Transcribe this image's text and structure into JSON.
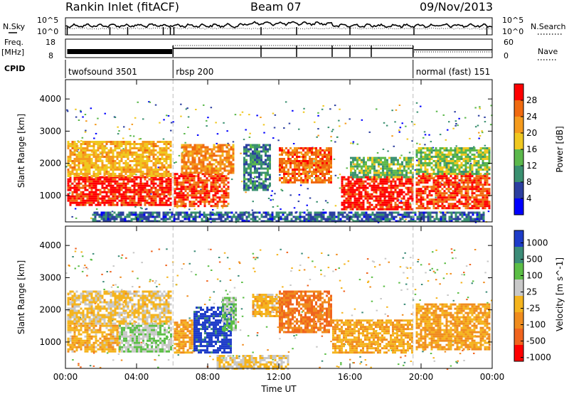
{
  "header": {
    "station": "Rankin Inlet (fitACF)",
    "beam": "Beam 07",
    "date": "09/Nov/2013"
  },
  "status_panel": {
    "nsky": {
      "label": "N.Sky",
      "ticks": [
        "10^5",
        "10^0"
      ]
    },
    "nsearch": {
      "label": "N.Search",
      "ticks": [
        "10^5",
        "10^0"
      ]
    },
    "freq": {
      "label_1": "Freq.",
      "label_2": "[MHz]",
      "ticks": [
        "18",
        "8"
      ]
    },
    "nave": {
      "label": "Nave",
      "ticks": [
        "60",
        "0"
      ]
    },
    "cpid": {
      "label": "CPID",
      "segments": [
        {
          "name": "twofsound 3501",
          "start_h": 0,
          "end_h": 6.05
        },
        {
          "name": "rbsp 200",
          "start_h": 6.05,
          "end_h": 19.55
        },
        {
          "name": "normal (fast) 151",
          "start_h": 19.55,
          "end_h": 24
        }
      ]
    }
  },
  "chart_data": [
    {
      "type": "heatmap",
      "title": "",
      "xlabel": "",
      "ylabel": "Slant Range [km]",
      "xlim": [
        0,
        24
      ],
      "ylim": [
        180,
        4600
      ],
      "yticks": [
        "1000",
        "2000",
        "3000",
        "4000"
      ],
      "colorbar": {
        "label": "Power [dB]",
        "ticks": [
          "4",
          "8",
          "12",
          "16",
          "20",
          "24",
          "28"
        ],
        "range": [
          0,
          30
        ],
        "colors": [
          "#0000ff",
          "#2c3fa0",
          "#3a9070",
          "#5cb84c",
          "#f0c820",
          "#f59b1e",
          "#f06a10",
          "#ff0000"
        ]
      },
      "regions": [
        {
          "t0": 0.1,
          "t1": 5.9,
          "r0": 700,
          "r1": 1600,
          "value": 28
        },
        {
          "t0": 0.1,
          "t1": 5.9,
          "r0": 1600,
          "r1": 2700,
          "value": 19
        },
        {
          "t0": 6.1,
          "t1": 9.2,
          "r0": 700,
          "r1": 1700,
          "value": 26
        },
        {
          "t0": 6.5,
          "t1": 9.5,
          "r0": 1700,
          "r1": 2600,
          "value": 22
        },
        {
          "t0": 10.0,
          "t1": 11.5,
          "r0": 1200,
          "r1": 2600,
          "value": 9
        },
        {
          "t0": 12.0,
          "t1": 15.0,
          "r0": 1400,
          "r1": 2500,
          "value": 24
        },
        {
          "t0": 15.5,
          "t1": 19.5,
          "r0": 600,
          "r1": 1600,
          "value": 28
        },
        {
          "t0": 16.0,
          "t1": 19.5,
          "r0": 1600,
          "r1": 2200,
          "value": 13
        },
        {
          "t0": 19.7,
          "t1": 23.9,
          "r0": 600,
          "r1": 1700,
          "value": 26
        },
        {
          "t0": 19.7,
          "t1": 23.9,
          "r0": 1700,
          "r1": 2500,
          "value": 14
        },
        {
          "t0": 1.5,
          "t1": 23.5,
          "r0": 200,
          "r1": 500,
          "value": 7
        }
      ]
    },
    {
      "type": "heatmap",
      "title": "",
      "xlabel": "Time UT",
      "ylabel": "Slant Range [km]",
      "xlim": [
        0,
        24
      ],
      "ylim": [
        180,
        4600
      ],
      "yticks": [
        "1000",
        "2000",
        "3000",
        "4000"
      ],
      "xticks": [
        "00:00",
        "04:00",
        "08:00",
        "12:00",
        "16:00",
        "20:00",
        "00:00"
      ],
      "colorbar": {
        "label": "Velocity [m s^-1]",
        "ticks": [
          "1000",
          "500",
          "100",
          "25",
          "-25",
          "-100",
          "-500",
          "-1000"
        ],
        "range": [
          -1200,
          1200
        ],
        "colors": [
          "#1e3cc8",
          "#3c8c78",
          "#5cbe46",
          "#c8c8c8",
          "#f5b41e",
          "#f08c1e",
          "#f0641e",
          "#ff0000"
        ]
      },
      "regions": [
        {
          "t0": 0.1,
          "t1": 3.0,
          "r0": 700,
          "r1": 1600,
          "value": -200
        },
        {
          "t0": 3.0,
          "t1": 5.9,
          "r0": 700,
          "r1": 1600,
          "value": 300
        },
        {
          "t0": 0.1,
          "t1": 5.9,
          "r0": 1600,
          "r1": 2600,
          "value": -60
        },
        {
          "t0": 6.1,
          "t1": 7.2,
          "r0": 700,
          "r1": 1700,
          "value": -300
        },
        {
          "t0": 7.2,
          "t1": 9.3,
          "r0": 700,
          "r1": 2100,
          "value": 1100
        },
        {
          "t0": 8.8,
          "t1": 9.6,
          "r0": 1400,
          "r1": 2400,
          "value": 400
        },
        {
          "t0": 10.5,
          "t1": 12.0,
          "r0": 1800,
          "r1": 2500,
          "value": -200
        },
        {
          "t0": 12.0,
          "t1": 15.0,
          "r0": 1300,
          "r1": 2600,
          "value": -600
        },
        {
          "t0": 15.0,
          "t1": 19.5,
          "r0": 700,
          "r1": 1700,
          "value": -250
        },
        {
          "t0": 19.7,
          "t1": 23.9,
          "r0": 800,
          "r1": 2200,
          "value": -300
        },
        {
          "t0": 8.5,
          "t1": 12.5,
          "r0": 200,
          "r1": 600,
          "value": 0
        }
      ]
    }
  ]
}
